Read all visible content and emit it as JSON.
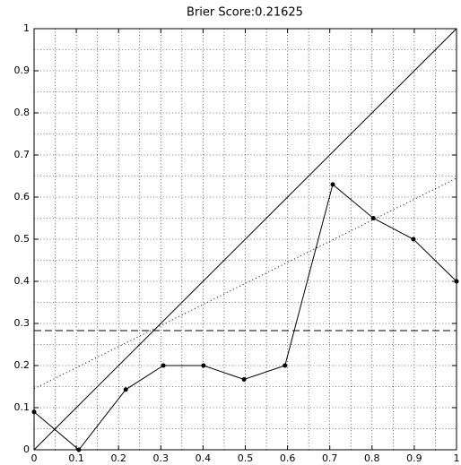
{
  "chart_data": {
    "type": "line",
    "title": "Brier Score:0.21625",
    "xlim": [
      0,
      1
    ],
    "ylim": [
      0,
      1
    ],
    "xticks": [
      0,
      0.1,
      0.2,
      0.3,
      0.4,
      0.5,
      0.6,
      0.7,
      0.8,
      0.9,
      1
    ],
    "yticks": [
      0,
      0.1,
      0.2,
      0.3,
      0.4,
      0.5,
      0.6,
      0.7,
      0.8,
      0.9,
      1
    ],
    "xminor": [
      0.05,
      0.15,
      0.25,
      0.35,
      0.45,
      0.55,
      0.65,
      0.75,
      0.85,
      0.95
    ],
    "yminor": [
      0.05,
      0.15,
      0.25,
      0.35,
      0.45,
      0.55,
      0.65,
      0.75,
      0.85,
      0.95
    ],
    "grid": true,
    "series": [
      {
        "color": "#000000",
        "style": "solid",
        "markers": true,
        "x": [
          0,
          0.106,
          0.217,
          0.306,
          0.401,
          0.497,
          0.594,
          0.707,
          0.803,
          0.898,
          1
        ],
        "values": [
          0.09,
          0,
          0.143,
          0.2,
          0.2,
          0.167,
          0.2,
          0.63,
          0.55,
          0.5,
          0.4
        ]
      },
      {
        "color": "#000000",
        "style": "solid",
        "markers": false,
        "x": [
          0,
          1
        ],
        "values": [
          0,
          1
        ]
      },
      {
        "color": "#000000",
        "style": "dotted",
        "markers": false,
        "x": [
          0,
          1
        ],
        "values": [
          0.145,
          0.645
        ]
      },
      {
        "color": "#000000",
        "style": "dashed",
        "markers": false,
        "x": [
          0,
          1
        ],
        "values": [
          0.283,
          0.283
        ]
      }
    ]
  }
}
